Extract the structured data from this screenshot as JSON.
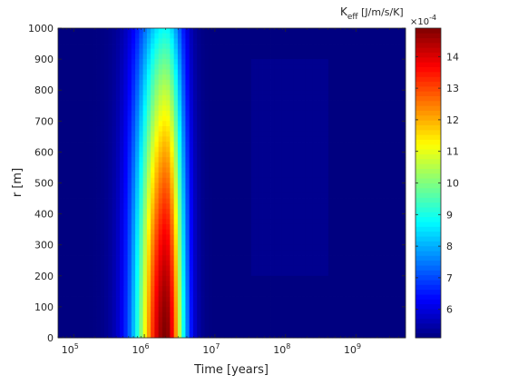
{
  "chart_data": {
    "type": "heatmap",
    "title": "",
    "xlabel": "Time [years]",
    "ylabel": "r [m]",
    "x_scale": "log",
    "xlim": [
      60000,
      5000000000
    ],
    "ylim": [
      0,
      1000
    ],
    "x_ticks": [
      {
        "value": 100000,
        "base": "10",
        "exp": "5"
      },
      {
        "value": 1000000,
        "base": "10",
        "exp": "6"
      },
      {
        "value": 10000000,
        "base": "10",
        "exp": "7"
      },
      {
        "value": 100000000,
        "base": "10",
        "exp": "8"
      },
      {
        "value": 1000000000,
        "base": "10",
        "exp": "9"
      }
    ],
    "y_ticks": [
      {
        "value": 0,
        "label": "0"
      },
      {
        "value": 100,
        "label": "100"
      },
      {
        "value": 200,
        "label": "200"
      },
      {
        "value": 300,
        "label": "300"
      },
      {
        "value": 400,
        "label": "400"
      },
      {
        "value": 500,
        "label": "500"
      },
      {
        "value": 600,
        "label": "600"
      },
      {
        "value": 700,
        "label": "700"
      },
      {
        "value": 800,
        "label": "800"
      },
      {
        "value": 900,
        "label": "900"
      },
      {
        "value": 1000,
        "label": "1000"
      }
    ],
    "grid": false,
    "colormap": "jet",
    "colorbar": {
      "title_main": "K",
      "title_sub": "eff",
      "title_unit": " [J/m/s/K]",
      "scale_base": "×10",
      "scale_exp": "-4",
      "clim": [
        5.1,
        14.9
      ],
      "ticks": [
        {
          "value": 6,
          "label": "6"
        },
        {
          "value": 7,
          "label": "7"
        },
        {
          "value": 8,
          "label": "8"
        },
        {
          "value": 9,
          "label": "9"
        },
        {
          "value": 10,
          "label": "10"
        },
        {
          "value": 11,
          "label": "11"
        },
        {
          "value": 12,
          "label": "12"
        },
        {
          "value": 13,
          "label": "13"
        },
        {
          "value": 14,
          "label": "14"
        }
      ]
    },
    "field": {
      "baseline": 5.1,
      "peak_time": 2000000,
      "peak_value": 14.9,
      "description_points": [
        {
          "time": 100000,
          "r": 0,
          "value": 5.8
        },
        {
          "time": 300000,
          "r": 0,
          "value": 7.5
        },
        {
          "time": 1000000,
          "r": 0,
          "value": 12.0
        },
        {
          "time": 2000000,
          "r": 0,
          "value": 14.9
        },
        {
          "time": 4000000,
          "r": 0,
          "value": 12.5
        },
        {
          "time": 10000000,
          "r": 0,
          "value": 6.5
        },
        {
          "time": 2000000,
          "r": 500,
          "value": 12.8
        },
        {
          "time": 2000000,
          "r": 800,
          "value": 9.0
        },
        {
          "time": 2000000,
          "r": 1000,
          "value": 6.8
        }
      ]
    }
  }
}
